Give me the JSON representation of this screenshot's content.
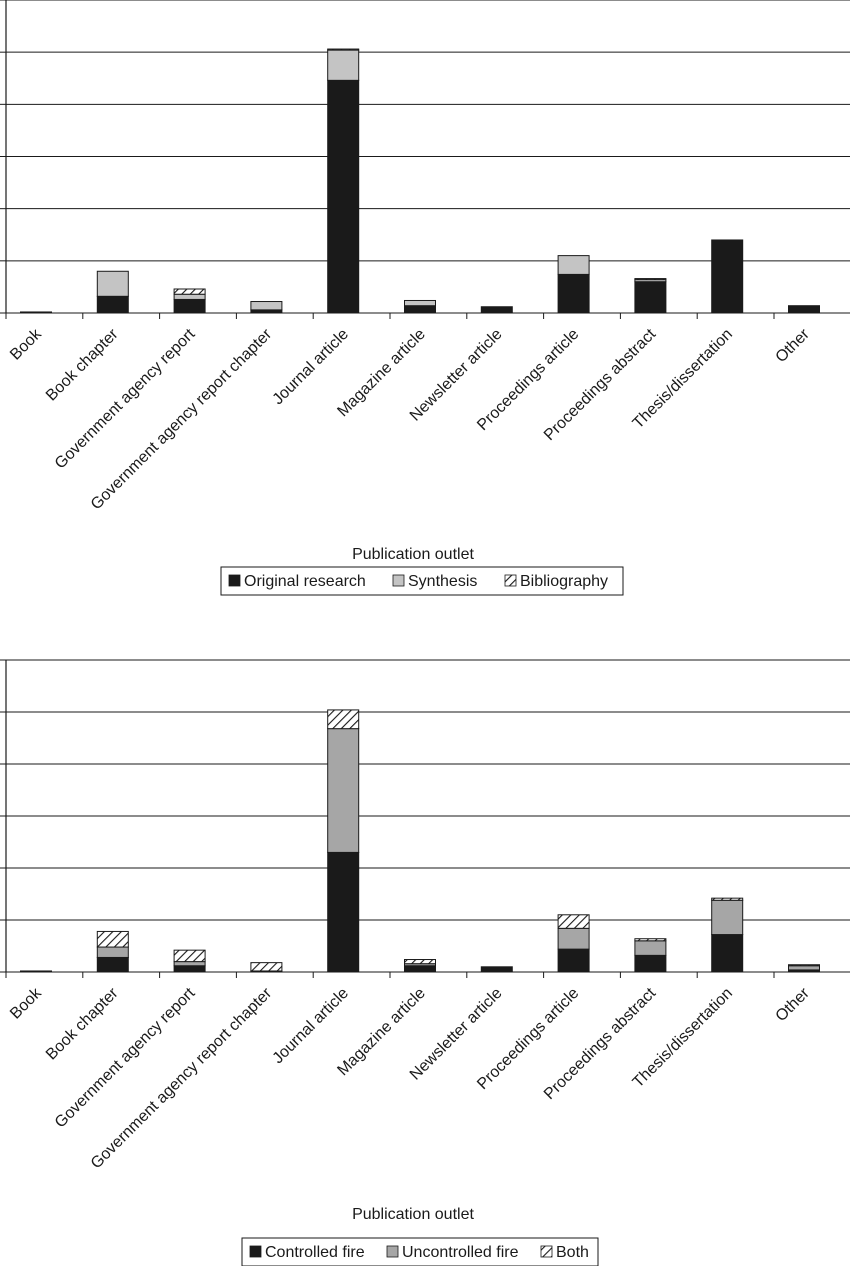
{
  "chart_data": [
    {
      "type": "bar",
      "stacked": true,
      "categories": [
        "Book",
        "Book chapter",
        "Government agency report",
        "Government agency report chapter",
        "Journal article",
        "Magazine article",
        "Newsletter article",
        "Proceedings article",
        "Proceedings abstract",
        "Thesis/dissertation",
        "Other"
      ],
      "series": [
        {
          "name": "Original research",
          "color": "#1a1a1a",
          "values": [
            1,
            16,
            13,
            3,
            223,
            7,
            6,
            37,
            30,
            70,
            7
          ]
        },
        {
          "name": "Synthesis",
          "color": "#c4c4c4",
          "values": [
            0,
            24,
            5,
            8,
            29,
            5,
            0,
            18,
            2,
            0,
            0
          ]
        },
        {
          "name": "Bibliography",
          "color": "hatch",
          "values": [
            0,
            0,
            5,
            0,
            1,
            0,
            0,
            0,
            1,
            0,
            0
          ]
        }
      ],
      "xlabel": "Publication outlet",
      "ylabel": "",
      "ylim": [
        0,
        300
      ],
      "grid": true,
      "legend": "bottom"
    },
    {
      "type": "bar",
      "stacked": true,
      "categories": [
        "Book",
        "Book chapter",
        "Government agency report",
        "Government agency report chapter",
        "Journal article",
        "Magazine article",
        "Newsletter article",
        "Proceedings article",
        "Proceedings abstract",
        "Thesis/dissertation",
        "Other"
      ],
      "series": [
        {
          "name": "Controlled fire",
          "color": "#1a1a1a",
          "values": [
            1,
            14,
            6,
            0,
            115,
            6,
            5,
            22,
            16,
            36,
            2
          ]
        },
        {
          "name": "Uncontrolled fire",
          "color": "#a6a6a6",
          "values": [
            0,
            10,
            4,
            1,
            119,
            2,
            0,
            20,
            14,
            33,
            4
          ]
        },
        {
          "name": "Both",
          "color": "hatch",
          "values": [
            0,
            15,
            11,
            8,
            18,
            4,
            0,
            13,
            2,
            2,
            1
          ]
        }
      ],
      "xlabel": "Publication outlet",
      "ylabel": "",
      "ylim": [
        0,
        300
      ],
      "grid": true,
      "legend": "bottom"
    }
  ]
}
